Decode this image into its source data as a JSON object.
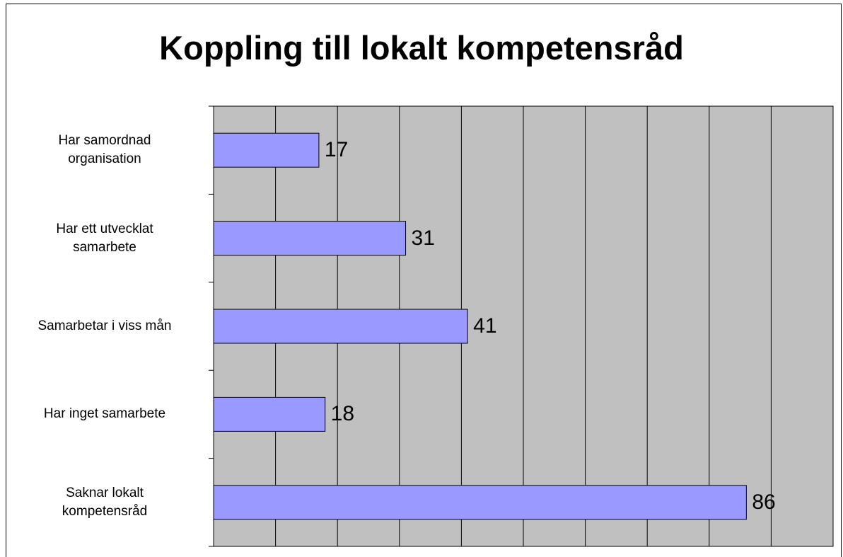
{
  "chart_data": {
    "type": "bar",
    "orientation": "horizontal",
    "title": "Koppling till lokalt kompetensråd",
    "categories": [
      "Har samordnad\norganisation",
      "Har ett utvecklat\nsamarbete",
      "Samarbetar i viss mån",
      "Har inget samarbete",
      "Saknar lokalt\nkompetensråd"
    ],
    "values": [
      17,
      31,
      41,
      18,
      86
    ],
    "color": "#9999ff",
    "background": "#c0c0c0",
    "xlim": [
      0,
      100
    ],
    "xticks": [
      0,
      10,
      20,
      30,
      40,
      50,
      60,
      70,
      80,
      90,
      100
    ],
    "grid": true
  }
}
